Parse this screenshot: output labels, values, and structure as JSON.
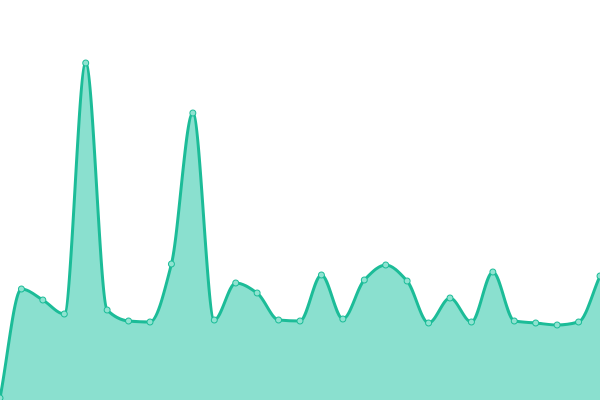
{
  "chart_data": {
    "type": "area",
    "title": "",
    "xlabel": "",
    "ylabel": "",
    "x": [
      0,
      1,
      2,
      3,
      4,
      5,
      6,
      7,
      8,
      9,
      10,
      11,
      12,
      13,
      14,
      15,
      16,
      17,
      18,
      19,
      20,
      21,
      22,
      23,
      24,
      25,
      26,
      27,
      28
    ],
    "values": [
      2,
      111,
      100,
      86,
      337,
      90,
      79,
      78,
      136,
      287,
      80,
      117,
      107,
      80,
      79,
      125,
      81,
      120,
      135,
      119,
      77,
      102,
      78,
      128,
      79,
      77,
      75,
      78,
      124
    ],
    "ylim": [
      0,
      400
    ],
    "grid": false,
    "axes_visible": false,
    "smooth": true,
    "markers": true,
    "colors": {
      "line": "#1cbc98",
      "fill": "#8ae0cf",
      "marker_fill": "#8fe3d1",
      "marker_stroke": "#1cbc98"
    }
  }
}
